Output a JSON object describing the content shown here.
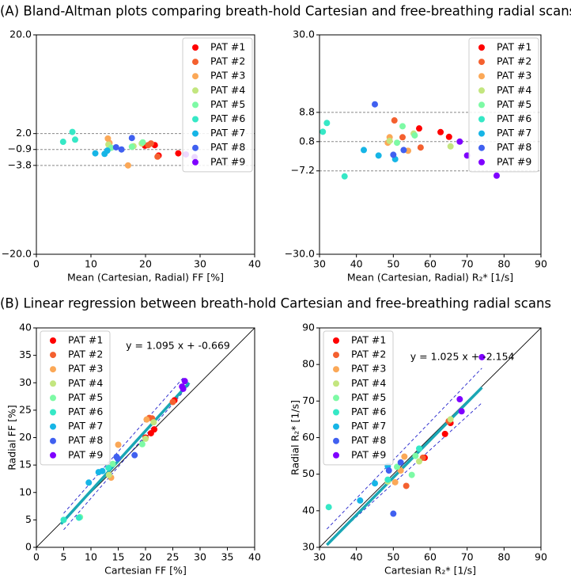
{
  "headings": [
    "(A) Bland-Altman plots comparing breath-hold Cartesian and free-breathing radial scans",
    "(B) Linear regression between breath-hold Cartesian and free-breathing radial scans"
  ],
  "chart_data": [
    {
      "type": "scatter",
      "xlabel": "Mean (Cartesian, Radial) FF [%]",
      "xlim": [
        0,
        40
      ],
      "ylim": [
        -20,
        20
      ],
      "xticks": [
        0,
        10,
        20,
        30,
        40
      ],
      "yticks": [
        {
          "value": -20,
          "label": "−20.0"
        },
        {
          "value": -3.8,
          "label": "−3.8"
        },
        {
          "value": -0.9,
          "label": "−0.9"
        },
        {
          "value": 2.0,
          "label": "2.0"
        },
        {
          "value": 20,
          "label": "20.0"
        }
      ],
      "hlines": [
        2.0,
        -0.9,
        -3.8
      ],
      "legend": "upper right",
      "series": [
        {
          "name": "PAT #1",
          "color": "#ff0000",
          "x": [
            19.9,
            21.7,
            22.4,
            26.0
          ],
          "y": [
            -0.2,
            -0.1,
            -2.0,
            -1.6
          ]
        },
        {
          "name": "PAT #2",
          "color": "#f4602f",
          "x": [
            20.5,
            21.0,
            22.2
          ],
          "y": [
            -0.1,
            0.2,
            -2.2
          ]
        },
        {
          "name": "PAT #3",
          "color": "#fba857",
          "x": [
            13.1,
            16.8,
            13.4
          ],
          "y": [
            1.1,
            -3.8,
            0.3
          ]
        },
        {
          "name": "PAT #4",
          "color": "#c3e67f",
          "x": [
            13.2,
            19.3,
            17.8
          ],
          "y": [
            0.0,
            0.2,
            -0.3
          ]
        },
        {
          "name": "PAT #5",
          "color": "#7dfaa5",
          "x": [
            17.5,
            19.5,
            13.7
          ],
          "y": [
            -0.4,
            0.4,
            -0.6
          ]
        },
        {
          "name": "PAT #6",
          "color": "#36e8c6",
          "x": [
            4.9,
            6.6,
            7.1
          ],
          "y": [
            0.5,
            2.3,
            0.9
          ]
        },
        {
          "name": "PAT #7",
          "color": "#16b5e6",
          "x": [
            10.8,
            12.5,
            13.0
          ],
          "y": [
            -1.6,
            -1.7,
            -1.1
          ]
        },
        {
          "name": "PAT #8",
          "color": "#4060f0",
          "x": [
            14.6,
            15.6,
            17.5
          ],
          "y": [
            -0.5,
            -0.9,
            1.2
          ]
        },
        {
          "name": "PAT #9",
          "color": "#7f00ff",
          "x": [
            27.4,
            29.0
          ],
          "y": [
            -1.8,
            -2.3
          ]
        }
      ]
    },
    {
      "type": "scatter",
      "xlabel": "Mean (Cartesian, Radial) R₂* [1/s]",
      "xlim": [
        30,
        90
      ],
      "ylim": [
        -30,
        30
      ],
      "xticks": [
        30,
        40,
        50,
        60,
        70,
        80,
        90
      ],
      "yticks": [
        {
          "value": -30,
          "label": "−30.0"
        },
        {
          "value": -7.2,
          "label": "−7.2"
        },
        {
          "value": 0.8,
          "label": "0.8"
        },
        {
          "value": 8.8,
          "label": "8.8"
        },
        {
          "value": 30,
          "label": "30.0"
        }
      ],
      "hlines": [
        8.8,
        0.8,
        -7.2
      ],
      "legend": "upper right",
      "series": [
        {
          "name": "PAT #1",
          "color": "#ff0000",
          "x": [
            57.0,
            62.8,
            65.1
          ],
          "y": [
            4.4,
            3.4,
            2.1
          ]
        },
        {
          "name": "PAT #2",
          "color": "#f4602f",
          "x": [
            50.3,
            57.4,
            52.5
          ],
          "y": [
            6.6,
            -0.8,
            2.0
          ]
        },
        {
          "name": "PAT #3",
          "color": "#fba857",
          "x": [
            49.0,
            54.0,
            48.5
          ],
          "y": [
            2.0,
            -1.7,
            0.5
          ]
        },
        {
          "name": "PAT #4",
          "color": "#c3e67f",
          "x": [
            65.5,
            55.5,
            49.0
          ],
          "y": [
            -0.5,
            3.0,
            1.0
          ]
        },
        {
          "name": "PAT #5",
          "color": "#7dfaa5",
          "x": [
            52.5,
            51.0,
            55.8
          ],
          "y": [
            5.0,
            0.5,
            2.5
          ]
        },
        {
          "name": "PAT #6",
          "color": "#36e8c6",
          "x": [
            30.9,
            32.0,
            36.8
          ],
          "y": [
            3.5,
            5.9,
            -8.7
          ]
        },
        {
          "name": "PAT #7",
          "color": "#16b5e6",
          "x": [
            42.0,
            46.0,
            50.5
          ],
          "y": [
            -1.5,
            -3.0,
            -4.0
          ]
        },
        {
          "name": "PAT #8",
          "color": "#4060f0",
          "x": [
            45.0,
            50.0,
            52.8
          ],
          "y": [
            11.0,
            -2.8,
            -1.5
          ]
        },
        {
          "name": "PAT #9",
          "color": "#7f00ff",
          "x": [
            68.0,
            70.0,
            78.0
          ],
          "y": [
            0.8,
            -3.0,
            -8.5
          ]
        }
      ]
    },
    {
      "type": "regression",
      "xlabel": "Cartesian FF [%]",
      "ylabel": "Radial FF [%]",
      "annotation": "y = 1.095 x + -0.669",
      "xlim": [
        0,
        40
      ],
      "ylim": [
        0,
        40
      ],
      "xticks": [
        0,
        5,
        10,
        15,
        20,
        25,
        30,
        35,
        40
      ],
      "yticks": [
        0,
        5,
        10,
        15,
        20,
        25,
        30,
        35,
        40
      ],
      "identity": true,
      "fit": {
        "slope": 1.095,
        "intercept": -0.669,
        "x": [
          4.5,
          28
        ]
      },
      "ci_lines": [
        {
          "x": [
            5,
            28
          ],
          "y": [
            3.2,
            29.6
          ]
        },
        {
          "x": [
            5,
            27
          ],
          "y": [
            6.2,
            31.0
          ]
        }
      ],
      "legend": "upper left",
      "series": [
        {
          "name": "PAT #1",
          "color": "#ff0000",
          "x": [
            20.0,
            21.0,
            21.6,
            25.3
          ],
          "y": [
            20.0,
            20.8,
            21.5,
            26.8
          ]
        },
        {
          "name": "PAT #2",
          "color": "#f4602f",
          "x": [
            20.7,
            21.2,
            25.0
          ],
          "y": [
            23.6,
            23.5,
            26.5
          ]
        },
        {
          "name": "PAT #3",
          "color": "#fba857",
          "x": [
            13.7,
            15.0,
            20.2
          ],
          "y": [
            12.7,
            18.7,
            23.3
          ]
        },
        {
          "name": "PAT #4",
          "color": "#c3e67f",
          "x": [
            13.3,
            21.5,
            20.0
          ],
          "y": [
            13.2,
            22.8,
            19.8
          ]
        },
        {
          "name": "PAT #5",
          "color": "#7dfaa5",
          "x": [
            19.4,
            8.0,
            14.0
          ],
          "y": [
            18.8,
            5.5,
            15.2
          ]
        },
        {
          "name": "PAT #6",
          "color": "#36e8c6",
          "x": [
            5.0,
            7.8,
            13.2
          ],
          "y": [
            5.0,
            5.4,
            14.5
          ]
        },
        {
          "name": "PAT #7",
          "color": "#16b5e6",
          "x": [
            9.6,
            11.4,
            12.1
          ],
          "y": [
            11.8,
            13.7,
            13.9
          ]
        },
        {
          "name": "PAT #8",
          "color": "#4060f0",
          "x": [
            14.7,
            18.0,
            14.9
          ],
          "y": [
            16.5,
            16.8,
            16.2
          ]
        },
        {
          "name": "PAT #9",
          "color": "#7f00ff",
          "x": [
            26.7,
            27.2,
            26.9
          ],
          "y": [
            29.3,
            30.3,
            28.9
          ]
        }
      ]
    },
    {
      "type": "regression",
      "xlabel": "Cartesian R₂* [1/s]",
      "ylabel": "Radial R₂* [1/s]",
      "annotation": "y = 1.025 x + -2.154",
      "xlim": [
        30,
        90
      ],
      "ylim": [
        30,
        90
      ],
      "xticks": [
        30,
        40,
        50,
        60,
        70,
        80,
        90
      ],
      "yticks": [
        30,
        40,
        50,
        60,
        70,
        80,
        90
      ],
      "identity": true,
      "fit": {
        "slope": 1.025,
        "intercept": -2.154,
        "x": [
          32,
          74
        ]
      },
      "ci_lines": [
        {
          "x": [
            32,
            74
          ],
          "y": [
            31.0,
            69.5
          ]
        },
        {
          "x": [
            32,
            74
          ],
          "y": [
            35.0,
            79.0
          ]
        }
      ],
      "legend": "upper left",
      "series": [
        {
          "name": "PAT #1",
          "color": "#ff0000",
          "x": [
            58.5,
            64.0,
            65.5
          ],
          "y": [
            54.5,
            61.0,
            64.0
          ]
        },
        {
          "name": "PAT #2",
          "color": "#f4602f",
          "x": [
            53.5,
            65.0,
            58.0
          ],
          "y": [
            46.8,
            64.5,
            54.5
          ]
        },
        {
          "name": "PAT #3",
          "color": "#fba857",
          "x": [
            53.0,
            50.5,
            52.0
          ],
          "y": [
            54.8,
            47.8,
            51.0
          ]
        },
        {
          "name": "PAT #4",
          "color": "#c3e67f",
          "x": [
            57.0,
            65.5,
            48.5
          ],
          "y": [
            53.5,
            65.0,
            48.0
          ]
        },
        {
          "name": "PAT #5",
          "color": "#7dfaa5",
          "x": [
            55.0,
            56.0,
            51.0
          ],
          "y": [
            49.8,
            55.0,
            52.0
          ]
        },
        {
          "name": "PAT #6",
          "color": "#36e8c6",
          "x": [
            32.5,
            48.5,
            57.0
          ],
          "y": [
            41.0,
            48.5,
            57.0
          ]
        },
        {
          "name": "PAT #7",
          "color": "#16b5e6",
          "x": [
            41.0,
            45.0,
            48.5
          ],
          "y": [
            42.8,
            47.5,
            52.2
          ]
        },
        {
          "name": "PAT #8",
          "color": "#4060f0",
          "x": [
            50.0,
            52.0,
            48.8
          ],
          "y": [
            39.2,
            53.2,
            51.0
          ]
        },
        {
          "name": "PAT #9",
          "color": "#7f00ff",
          "x": [
            68.0,
            68.5,
            74.0
          ],
          "y": [
            70.5,
            67.2,
            82.0
          ]
        }
      ]
    }
  ]
}
